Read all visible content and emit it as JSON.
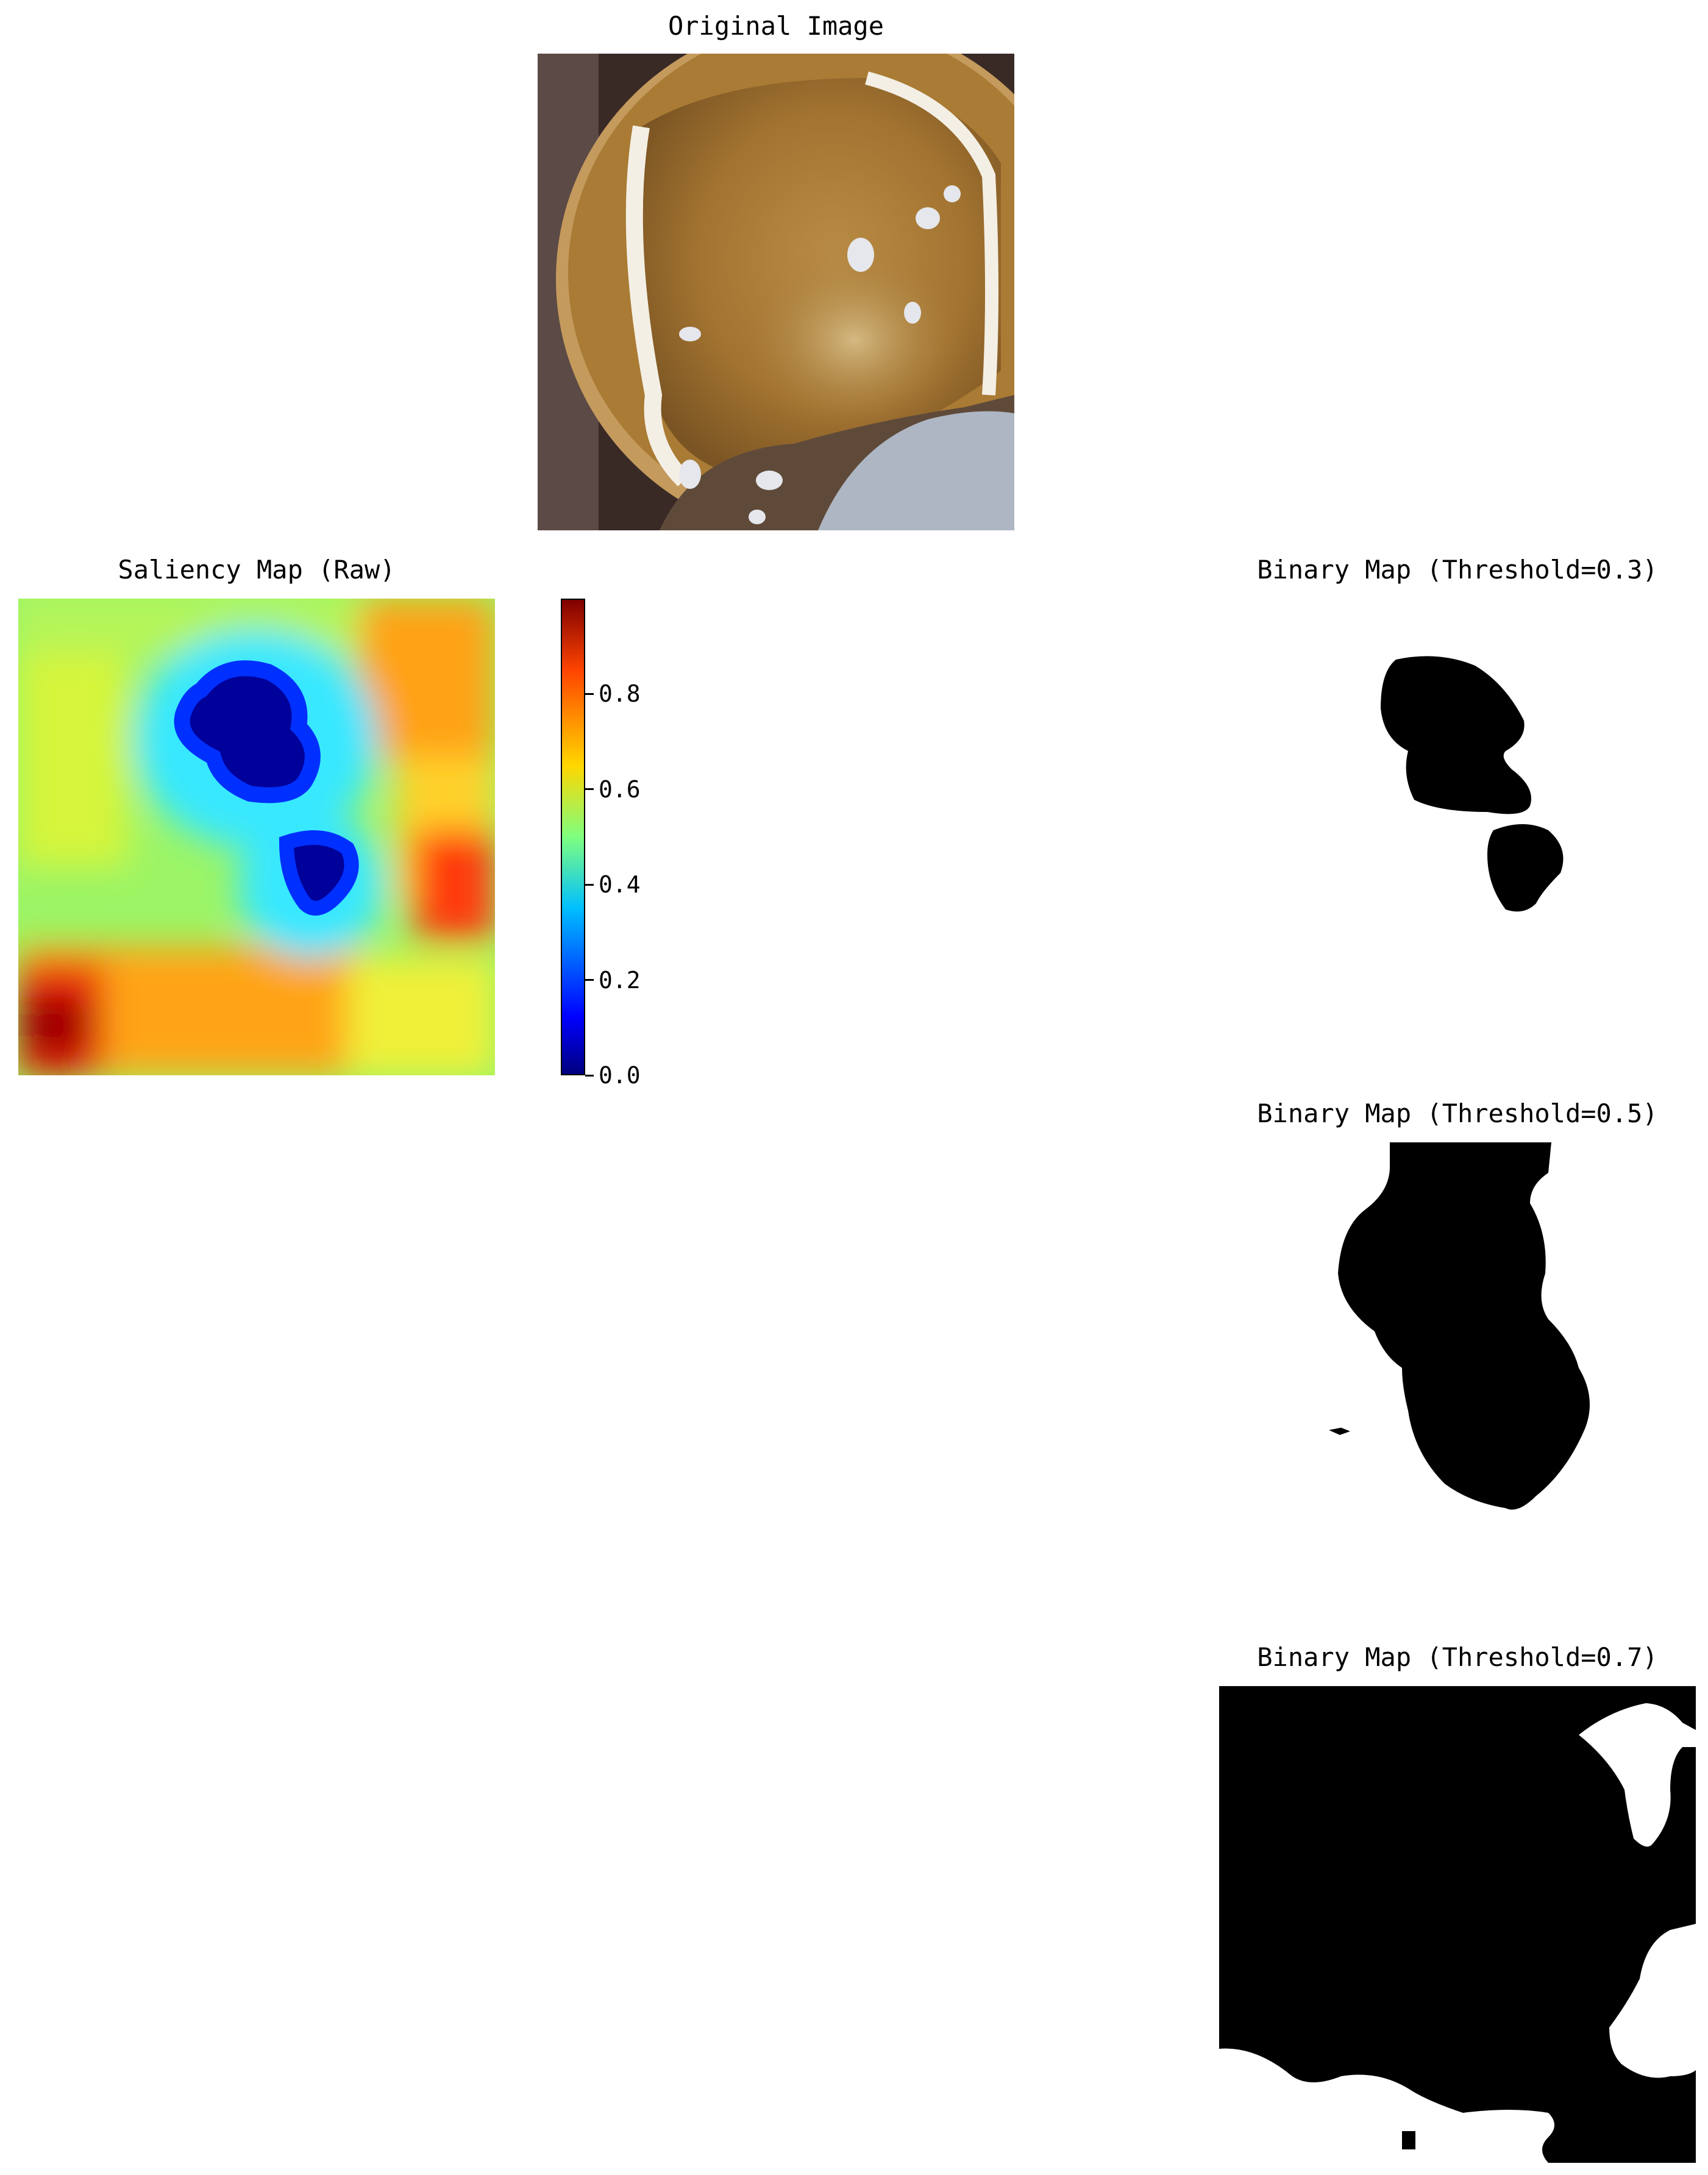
{
  "chart_data": [
    {
      "type": "image",
      "title": "Original Image",
      "description_colors": {
        "outer": "#2b1f1c",
        "rim": "#c9a877",
        "inner": "#a7782f",
        "edge": "#f3ede3",
        "cloth": "#a9b3c2"
      }
    },
    {
      "type": "heatmap",
      "title": "Saliency Map (Raw)",
      "colormap": "jet",
      "colorbar": {
        "range": [
          0.0,
          1.0
        ],
        "ticks": [
          "0.0",
          "0.2",
          "0.4",
          "0.6",
          "0.8"
        ],
        "tick_values": [
          0.0,
          0.2,
          0.4,
          0.6,
          0.8
        ]
      }
    },
    {
      "type": "image",
      "title": "Binary Map (Threshold=0.3)"
    },
    {
      "type": "image",
      "title": "Binary Map (Threshold=0.5)"
    },
    {
      "type": "image",
      "title": "Binary Map (Threshold=0.7)"
    }
  ]
}
